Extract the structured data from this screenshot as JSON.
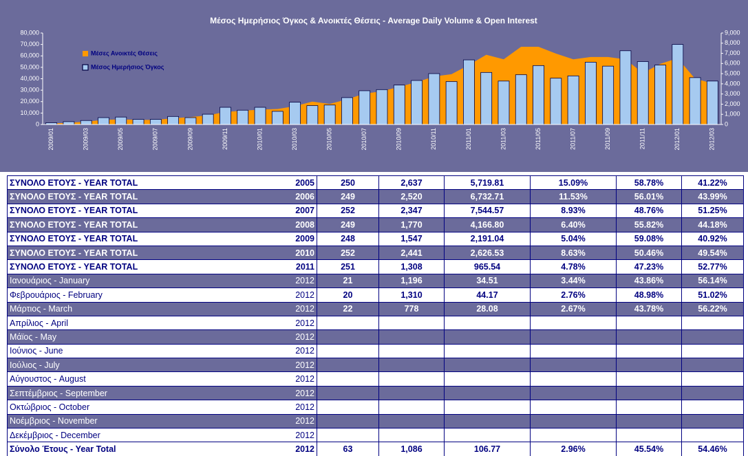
{
  "chart_data": {
    "type": "bar_area",
    "title": "Μέσος Ημερήσιος Όγκος & Ανοικτές Θέσεις - Average Daily Volume & Open Interest",
    "categories": [
      "2009/01",
      null,
      "2009/03",
      null,
      "2009/05",
      null,
      "2009/07",
      null,
      "2009/09",
      null,
      "2009/11",
      null,
      "2010/01",
      null,
      "2010/03",
      null,
      "2010/05",
      null,
      "2010/07",
      null,
      "2010/09",
      null,
      "2010/11",
      null,
      "2011/01",
      null,
      "2011/03",
      null,
      "2011/05",
      null,
      "2011/07",
      null,
      "2011/09",
      null,
      "2011/11",
      null,
      "2012/01",
      null,
      "2012/03"
    ],
    "series": [
      {
        "name": "Μέσες Ανοικτές Θέσεις",
        "color": "#ff9900",
        "kind": "area",
        "values": [
          800,
          1500,
          2500,
          4000,
          4500,
          4000,
          4000,
          5500,
          6500,
          8000,
          11000,
          12000,
          13000,
          13500,
          16000,
          20000,
          18000,
          22000,
          27000,
          29000,
          33000,
          37000,
          42000,
          44000,
          52000,
          61000,
          57000,
          68000,
          68000,
          62000,
          57000,
          59000,
          59000,
          57000,
          45000,
          53000,
          58000,
          40000,
          36000
        ]
      },
      {
        "name": "Μέσος Ημερήσιος Όγκος",
        "color": "#a6caf0",
        "kind": "bar",
        "axis": "y2",
        "values": [
          170,
          280,
          390,
          675,
          730,
          505,
          505,
          790,
          675,
          1010,
          1690,
          1405,
          1690,
          1295,
          2195,
          1855,
          1915,
          2645,
          3320,
          3430,
          3880,
          4330,
          5005,
          4220,
          6355,
          5120,
          4275,
          4895,
          5795,
          4555,
          4780,
          6130,
          5740,
          7255,
          6190,
          5850,
          7875,
          4610,
          4275
        ]
      }
    ],
    "ylim": [
      0,
      80000
    ],
    "yticks": [
      0,
      {
        "value": 10000,
        "label": "10,000"
      },
      {
        "value": 20000,
        "label": "20,000"
      },
      {
        "value": 30000,
        "label": "30,000"
      },
      {
        "value": 40000,
        "label": "40,000"
      },
      {
        "value": 50000,
        "label": "50,000"
      },
      {
        "value": 60000,
        "label": "60,000"
      },
      {
        "value": 70000,
        "label": "70,000"
      },
      {
        "value": 80000,
        "label": "80,000"
      }
    ],
    "y2lim": [
      0,
      9000
    ],
    "y2ticks": [
      0,
      {
        "value": 1000,
        "label": "1,000"
      },
      {
        "value": 2000,
        "label": "2,000"
      },
      {
        "value": 3000,
        "label": "3,000"
      },
      {
        "value": 4000,
        "label": "4,000"
      },
      {
        "value": 5000,
        "label": "5,000"
      },
      {
        "value": 6000,
        "label": "6,000"
      },
      {
        "value": 7000,
        "label": "7,000"
      },
      {
        "value": 8000,
        "label": "8,000"
      },
      {
        "value": 9000,
        "label": "9,000"
      }
    ],
    "legend": "top-left"
  },
  "table": {
    "rows": [
      [
        "ΣΥΝΟΛΟ ΕΤΟΥΣ - YEAR TOTAL",
        "2005",
        "250",
        "2,637",
        "5,719.81",
        "15.09%",
        "58.78%",
        "41.22%"
      ],
      [
        "ΣΥΝΟΛΟ ΕΤΟΥΣ - YEAR TOTAL",
        "2006",
        "249",
        "2,520",
        "6,732.71",
        "11.53%",
        "56.01%",
        "43.99%"
      ],
      [
        "ΣΥΝΟΛΟ ΕΤΟΥΣ - YEAR TOTAL",
        "2007",
        "252",
        "2,347",
        "7,544.57",
        "8.93%",
        "48.76%",
        "51.25%"
      ],
      [
        "ΣΥΝΟΛΟ ΕΤΟΥΣ - YEAR TOTAL",
        "2008",
        "249",
        "1,770",
        "4,166.80",
        "6.40%",
        "55.82%",
        "44.18%"
      ],
      [
        "ΣΥΝΟΛΟ ΕΤΟΥΣ - YEAR TOTAL",
        "2009",
        "248",
        "1,547",
        "2,191.04",
        "5.04%",
        "59.08%",
        "40.92%"
      ],
      [
        "ΣΥΝΟΛΟ ΕΤΟΥΣ - YEAR TOTAL",
        "2010",
        "252",
        "2,441",
        "2,626.53",
        "8.63%",
        "50.46%",
        "49.54%"
      ],
      [
        "ΣΥΝΟΛΟ ΕΤΟΥΣ - YEAR TOTAL",
        "2011",
        "251",
        "1,308",
        "965.54",
        "4.78%",
        "47.23%",
        "52.77%"
      ],
      [
        "Ιανουάριος - January",
        "2012",
        "21",
        "1,196",
        "34.51",
        "3.44%",
        "43.86%",
        "56.14%"
      ],
      [
        "Φεβρουάριος - February",
        "2012",
        "20",
        "1,310",
        "44.17",
        "2.76%",
        "48.98%",
        "51.02%"
      ],
      [
        "Μάρτιος - March",
        "2012",
        "22",
        "778",
        "28.08",
        "2.67%",
        "43.78%",
        "56.22%"
      ],
      [
        "Απρίλιος - April",
        "2012"
      ],
      [
        "Μάϊος - May",
        "2012"
      ],
      [
        "Ιούνιος - June",
        "2012"
      ],
      [
        "Ιούλιος - July",
        "2012"
      ],
      [
        "Αύγουστος - August",
        "2012"
      ],
      [
        "Σεπτέμβριος - September",
        "2012"
      ],
      [
        "Οκτώβριος - October",
        "2012"
      ],
      [
        "Νοέμβριος - November",
        "2012"
      ],
      [
        "Δεκέμβριος - December",
        "2012"
      ],
      [
        "Σύνολο Έτους - Year Total",
        "2012",
        "63",
        "1,086",
        "106.77",
        "2.96%",
        "45.54%",
        "54.46%"
      ]
    ]
  }
}
